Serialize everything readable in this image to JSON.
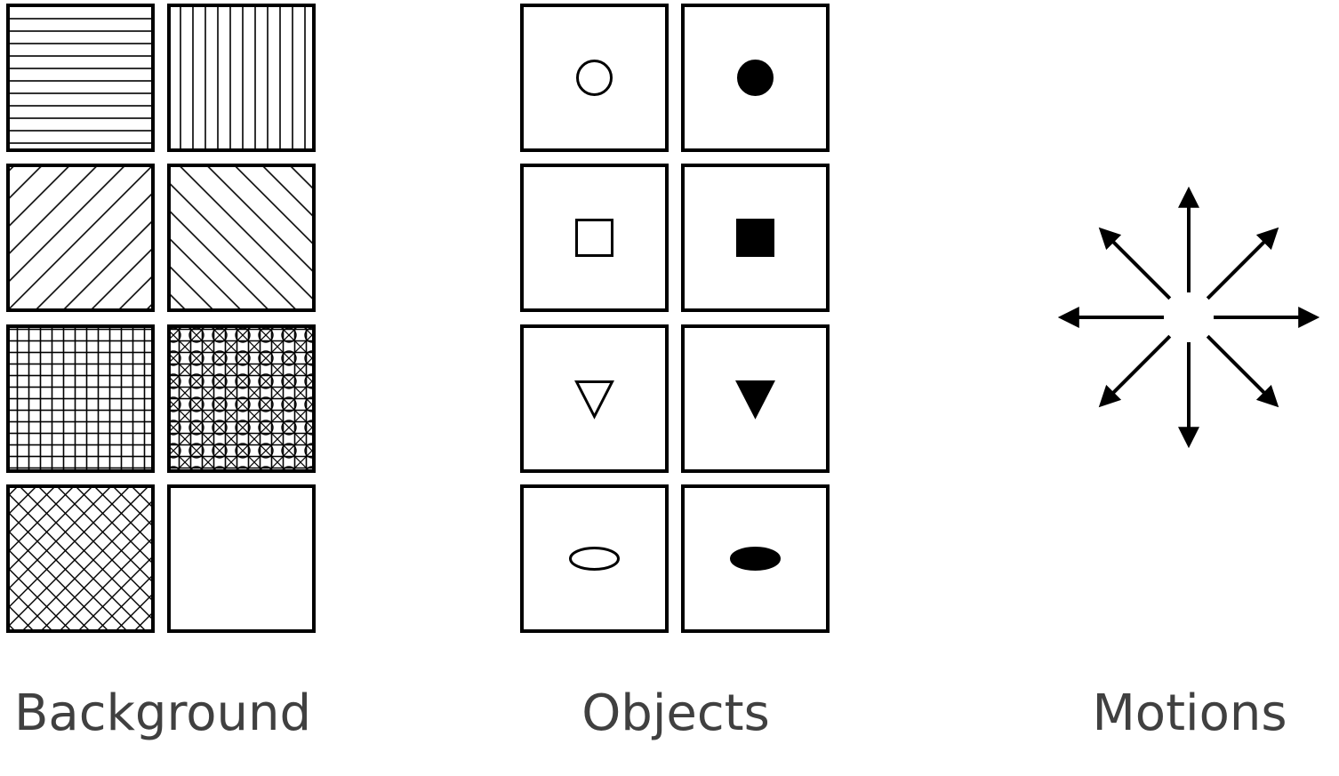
{
  "captions": {
    "background": "Background",
    "objects": "Objects",
    "motions": "Motions"
  },
  "background_patterns": [
    "horizontal-lines",
    "vertical-lines",
    "diagonal-lines-down",
    "diagonal-lines-up",
    "grid",
    "grid-with-circles",
    "crosshatch",
    "blank"
  ],
  "objects": [
    {
      "shape": "circle",
      "fill": "hollow"
    },
    {
      "shape": "circle",
      "fill": "solid"
    },
    {
      "shape": "square",
      "fill": "hollow"
    },
    {
      "shape": "square",
      "fill": "solid"
    },
    {
      "shape": "triangle-down",
      "fill": "hollow"
    },
    {
      "shape": "triangle-down",
      "fill": "solid"
    },
    {
      "shape": "ellipse",
      "fill": "hollow"
    },
    {
      "shape": "ellipse",
      "fill": "solid"
    }
  ],
  "motions": [
    "up",
    "up-right",
    "right",
    "down-right",
    "down",
    "down-left",
    "left",
    "up-left"
  ],
  "colors": {
    "stroke": "#000000",
    "caption": "#404040",
    "background": "#ffffff"
  }
}
